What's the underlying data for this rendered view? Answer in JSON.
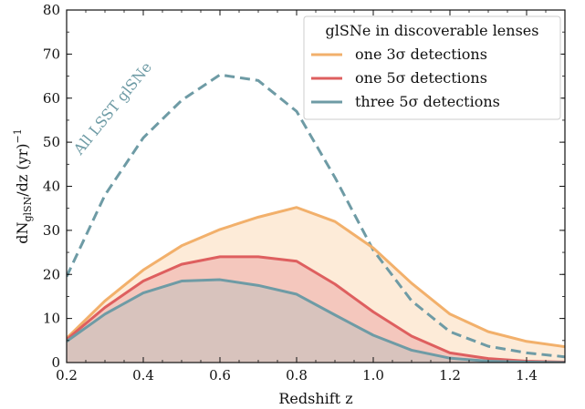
{
  "chart_data": {
    "type": "line",
    "title": "",
    "xlabel": "Redshift z",
    "ylabel_main": "dN",
    "ylabel_sub": "glSN",
    "ylabel_rest": "/dz (yr)",
    "ylabel_sup": "−1",
    "xlim": [
      0.2,
      1.5
    ],
    "ylim": [
      0,
      80
    ],
    "x_ticks": [
      0.2,
      0.4,
      0.6,
      0.8,
      1.0,
      1.2,
      1.4
    ],
    "x_tick_labels": [
      "0.2",
      "0.4",
      "0.6",
      "0.8",
      "1.0",
      "1.2",
      "1.4"
    ],
    "y_ticks": [
      0,
      10,
      20,
      30,
      40,
      50,
      60,
      70,
      80
    ],
    "y_tick_labels": [
      "0",
      "10",
      "20",
      "30",
      "40",
      "50",
      "60",
      "70",
      "80"
    ],
    "grid": false,
    "legend_title": "glSNe in discoverable lenses",
    "legend_position": "top-right",
    "x": [
      0.2,
      0.3,
      0.4,
      0.5,
      0.6,
      0.7,
      0.8,
      0.9,
      1.0,
      1.1,
      1.2,
      1.3,
      1.4,
      1.5
    ],
    "series": [
      {
        "name": "one 3σ detections",
        "color": "#f2b06b",
        "fill": "#fdebd8",
        "style": "solid",
        "values": [
          5.5,
          14,
          21,
          26.5,
          30.2,
          33,
          35.2,
          32,
          26,
          18,
          11,
          7,
          4.8,
          3.6
        ]
      },
      {
        "name": "one 5σ detections",
        "color": "#de5f5f",
        "fill": "#f4c7bd",
        "style": "solid",
        "values": [
          5.2,
          12.5,
          18.5,
          22.3,
          24,
          24,
          23,
          17.8,
          11.5,
          6,
          2.2,
          0.9,
          0.3,
          0.1
        ]
      },
      {
        "name": "three 5σ detections",
        "color": "#6e9ba5",
        "fill": "#d8c3bd",
        "style": "solid",
        "values": [
          4.8,
          11,
          15.8,
          18.5,
          18.8,
          17.5,
          15.5,
          10.8,
          6.2,
          2.8,
          1,
          0.3,
          0.1,
          0
        ]
      },
      {
        "name": "",
        "color": "#6e9ba5",
        "style": "dashed",
        "values": [
          19.5,
          38,
          51,
          59.5,
          65.3,
          64,
          57,
          42,
          25.5,
          14,
          7,
          3.7,
          2.2,
          1.3
        ]
      }
    ],
    "annotation": {
      "text": "All LSST glSNe",
      "color": "#6e9ba5",
      "x": 0.33,
      "y": 57,
      "angle": -51
    }
  }
}
